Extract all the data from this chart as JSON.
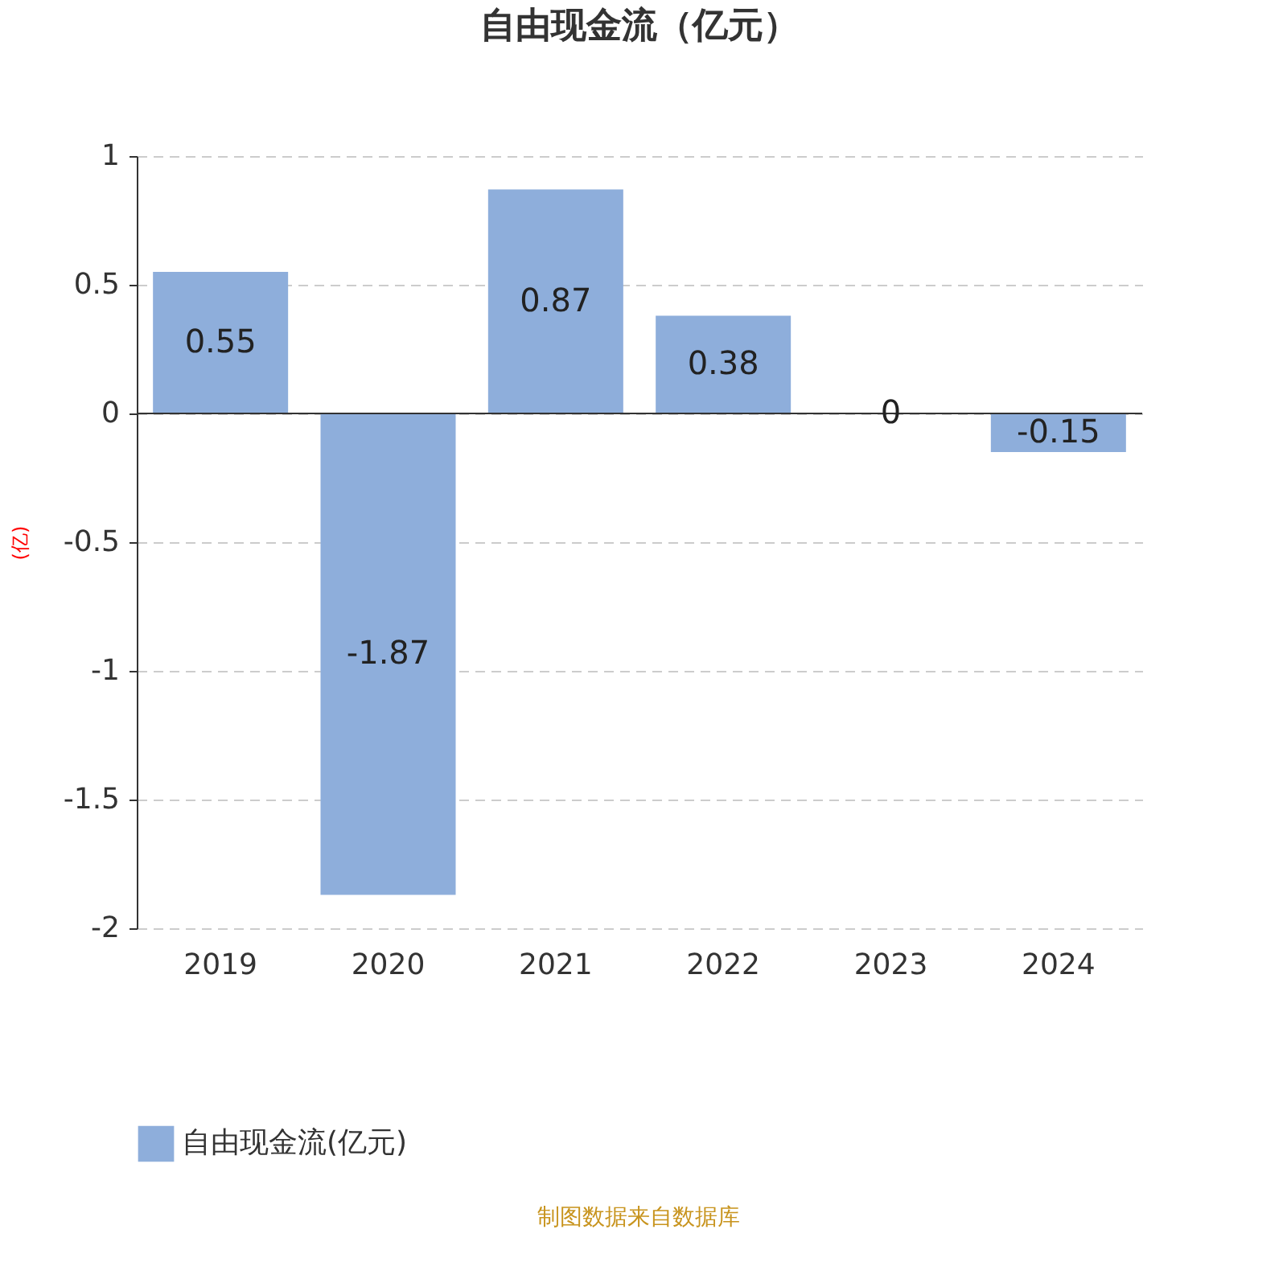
{
  "chart_data": {
    "type": "bar",
    "title": "自由现金流（亿元）",
    "ylabel": "(亿)",
    "categories": [
      "2019",
      "2020",
      "2021",
      "2022",
      "2023",
      "2024"
    ],
    "series": [
      {
        "name": "自由现金流(亿元)",
        "color": "#8eaedb",
        "values": [
          0.55,
          -1.87,
          0.87,
          0.38,
          0,
          -0.15
        ]
      }
    ],
    "ylim": [
      -2,
      1
    ],
    "yticks": [
      -2,
      -1.5,
      -1,
      -0.5,
      0,
      0.5,
      1
    ],
    "grid": "y",
    "legend": "bottom",
    "data_labels": true,
    "annotations": [
      "制图数据来自数据库"
    ]
  }
}
